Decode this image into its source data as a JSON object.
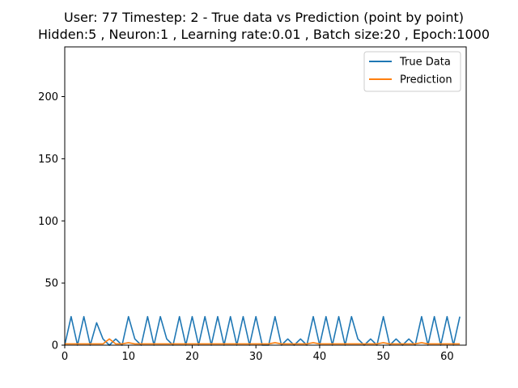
{
  "chart_data": {
    "type": "line",
    "title_lines": [
      "User: 77 Timestep: 2 - True data vs Prediction (point by point)",
      "Hidden:5 , Neuron:1 , Learning rate:0.01 , Batch size:20 , Epoch:1000"
    ],
    "xlabel": "",
    "ylabel": "",
    "xlim": [
      0,
      63
    ],
    "ylim": [
      0,
      240
    ],
    "xticks": [
      0,
      10,
      20,
      30,
      40,
      50,
      60
    ],
    "yticks": [
      0,
      50,
      100,
      150,
      200
    ],
    "grid": false,
    "legend_position": "top-right",
    "series": [
      {
        "name": "True Data",
        "color": "#1f77b4",
        "x": [
          0,
          1,
          2,
          3,
          4,
          5,
          6,
          7,
          8,
          9,
          10,
          11,
          12,
          13,
          14,
          15,
          16,
          17,
          18,
          19,
          20,
          21,
          22,
          23,
          24,
          25,
          26,
          27,
          28,
          29,
          30,
          31,
          32,
          33,
          34,
          35,
          36,
          37,
          38,
          39,
          40,
          41,
          42,
          43,
          44,
          45,
          46,
          47,
          48,
          49,
          50,
          51,
          52,
          53,
          54,
          55,
          56,
          57,
          58,
          59,
          60,
          61,
          62
        ],
        "values": [
          0,
          23,
          0,
          23,
          0,
          18,
          5,
          0,
          5,
          0,
          23,
          5,
          0,
          23,
          0,
          23,
          5,
          0,
          23,
          0,
          23,
          0,
          23,
          0,
          23,
          0,
          23,
          0,
          23,
          0,
          23,
          0,
          0,
          23,
          0,
          5,
          0,
          5,
          0,
          23,
          0,
          23,
          0,
          23,
          0,
          23,
          5,
          0,
          5,
          0,
          23,
          0,
          5,
          0,
          5,
          0,
          23,
          0,
          23,
          0,
          23,
          0,
          23
        ]
      },
      {
        "name": "Prediction",
        "color": "#ff7f0e",
        "x": [
          0,
          1,
          2,
          3,
          4,
          5,
          6,
          7,
          8,
          9,
          10,
          11,
          12,
          13,
          14,
          15,
          16,
          17,
          18,
          19,
          20,
          21,
          22,
          23,
          24,
          25,
          26,
          27,
          28,
          29,
          30,
          31,
          32,
          33,
          34,
          35,
          36,
          37,
          38,
          39,
          40,
          41,
          42,
          43,
          44,
          45,
          46,
          47,
          48,
          49,
          50,
          51,
          52,
          53,
          54,
          55,
          56,
          57,
          58,
          59,
          60,
          61,
          62
        ],
        "values": [
          1,
          1,
          1,
          1,
          1,
          1,
          1,
          5,
          1,
          1,
          2,
          1,
          1,
          1,
          1,
          1,
          1,
          1,
          1,
          1,
          1,
          1,
          1,
          1,
          1,
          1,
          1,
          1,
          1,
          1,
          1,
          1,
          1,
          2,
          1,
          1,
          1,
          1,
          1,
          2,
          1,
          1,
          1,
          1,
          1,
          1,
          1,
          1,
          1,
          1,
          2,
          1,
          1,
          1,
          1,
          1,
          2,
          1,
          1,
          1,
          1,
          1,
          1
        ]
      }
    ]
  }
}
